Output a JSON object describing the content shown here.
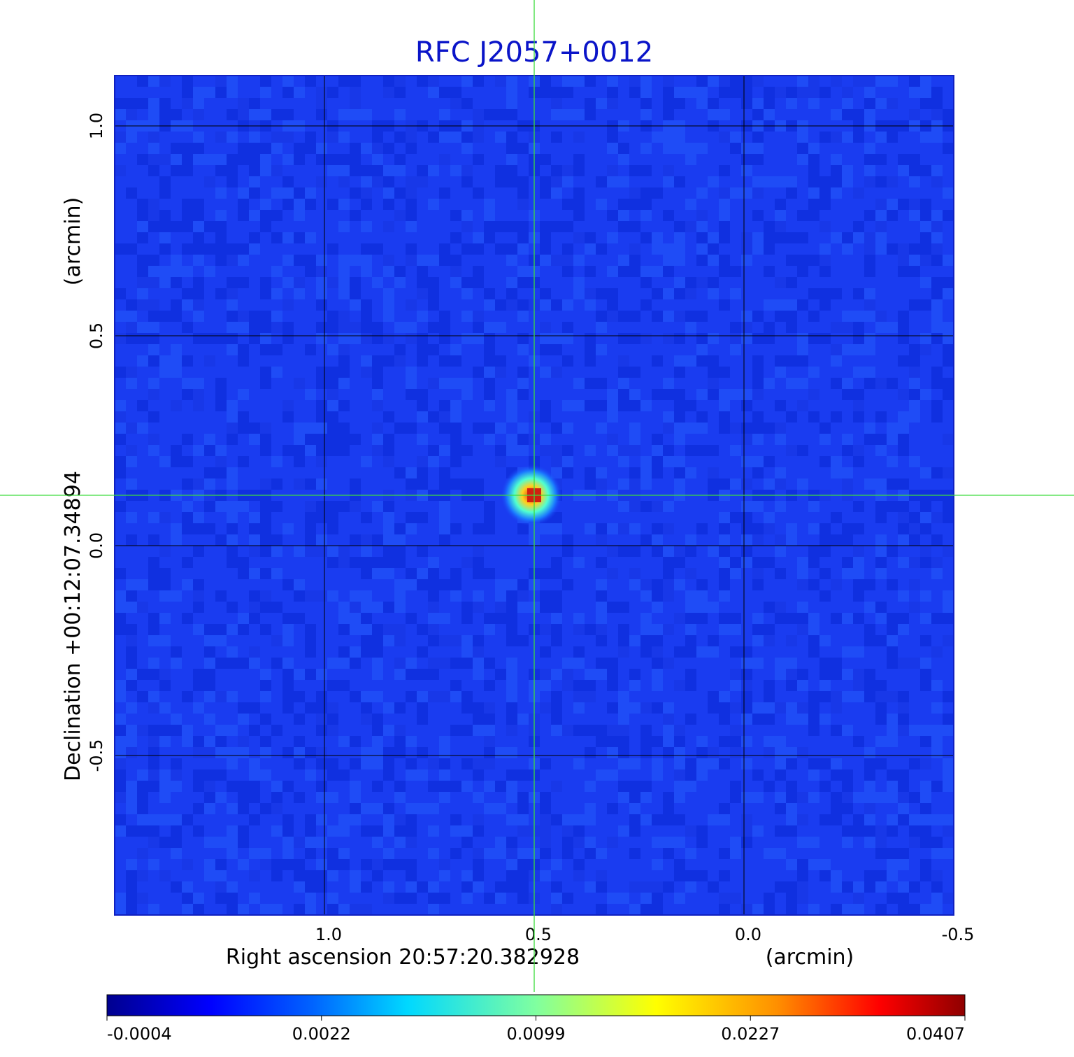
{
  "chart_data": {
    "type": "heatmap",
    "title": "RFC J2057+0012",
    "xlabel": "Right ascension  20:57:20.382928",
    "xunit": "(arcmin)",
    "ylabel": "Declination  +00:12:07.34894",
    "yunit": "(arcmin)",
    "xlim": [
      1.5,
      -0.5
    ],
    "ylim": [
      -0.88,
      1.12
    ],
    "x_ticks": [
      "1.0",
      "0.5",
      "0.0",
      "-0.5"
    ],
    "x_tick_values": [
      1.0,
      0.5,
      0.0,
      -0.5
    ],
    "y_ticks": [
      "-0.5",
      "0.0",
      "0.5",
      "1.0"
    ],
    "y_tick_values": [
      -0.5,
      0.0,
      0.5,
      1.0
    ],
    "grid": true,
    "colormap": "jet",
    "source": {
      "x": 0.5,
      "y": 0.12,
      "peak": 0.0407
    },
    "crosshair": {
      "x": 0.5,
      "y": 0.12,
      "color": "#3cdc3c"
    },
    "colorbar": {
      "ticks": [
        "-0.0004",
        "0.0022",
        "0.0099",
        "0.0227",
        "0.0407"
      ],
      "orientation": "horizontal"
    }
  }
}
